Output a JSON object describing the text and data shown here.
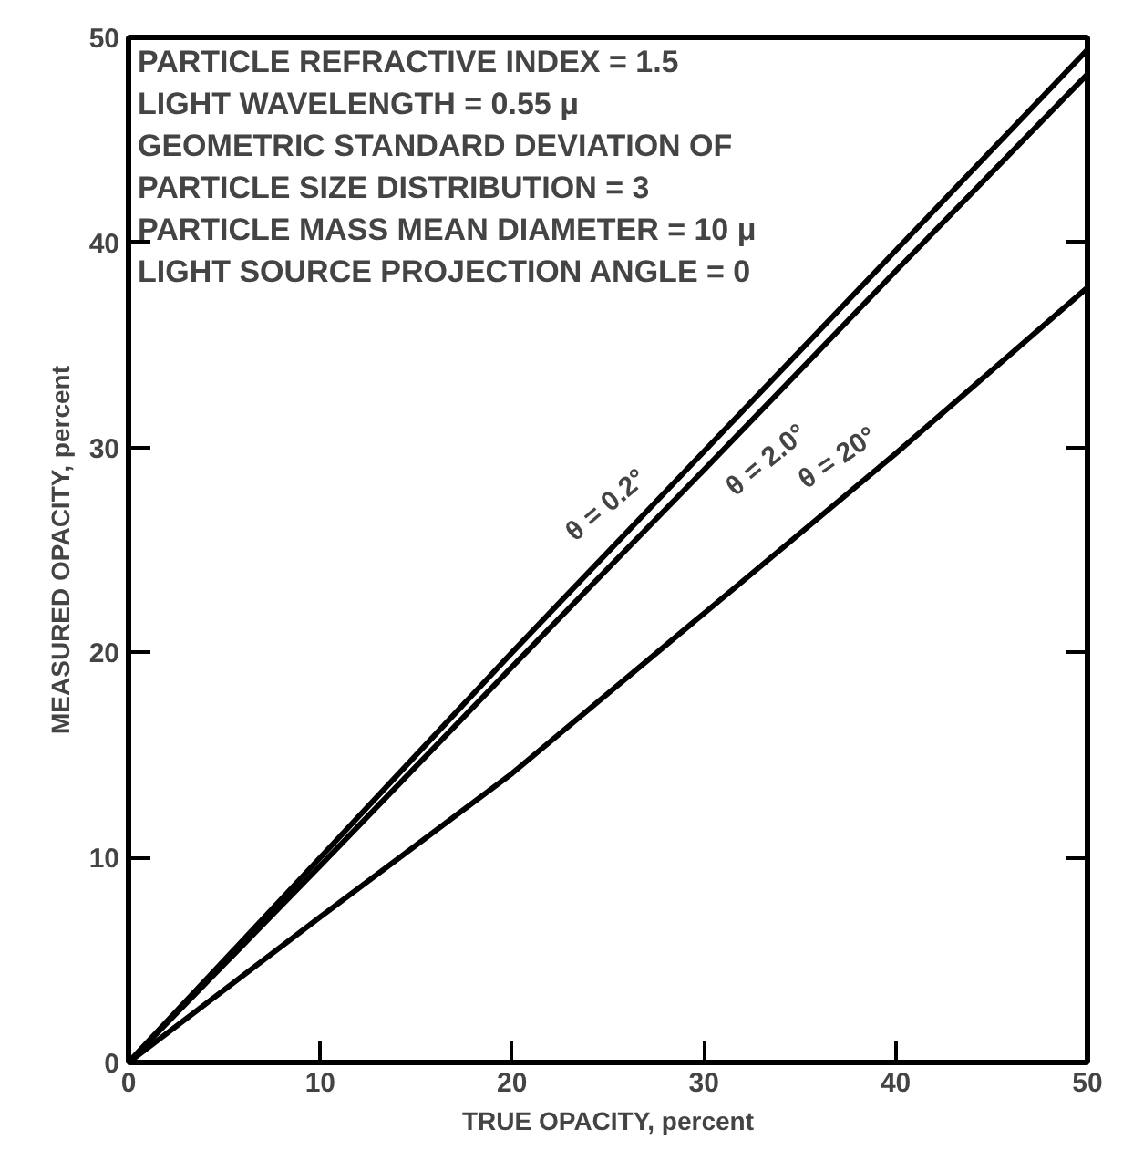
{
  "chart_data": {
    "type": "line",
    "xlabel": "TRUE OPACITY, percent",
    "ylabel": "MEASURED OPACITY, percent",
    "x": [
      0,
      10,
      20,
      30,
      40,
      50
    ],
    "series": [
      {
        "name": "θ = 0.2°",
        "color": "#000000",
        "values": [
          0,
          10,
          20,
          29.8,
          39.6,
          49.4
        ]
      },
      {
        "name": "θ = 2.0°",
        "color": "#000000",
        "values": [
          0,
          9.6,
          19.3,
          28.9,
          38.6,
          48.2
        ]
      },
      {
        "name": "θ = 20°",
        "color": "#000000",
        "values": [
          0,
          7.1,
          14.1,
          21.9,
          29.7,
          37.8
        ]
      }
    ],
    "xlim": [
      0,
      50
    ],
    "ylim": [
      0,
      50
    ],
    "xticks": [
      0,
      10,
      20,
      30,
      40,
      50
    ],
    "yticks": [
      0,
      10,
      20,
      30,
      40,
      50
    ],
    "grid": false,
    "marker": "none",
    "line_style": "solid",
    "annotations": [
      "PARTICLE REFRACTIVE INDEX = 1.5",
      "LIGHT WAVELENGTH = 0.55 μ",
      "GEOMETRIC STANDARD DEVIATION OF",
      "PARTICLE SIZE DISTRIBUTION = 3",
      "PARTICLE MASS MEAN DIAMETER = 10 μ",
      "LIGHT SOURCE PROJECTION ANGLE = 0"
    ]
  }
}
